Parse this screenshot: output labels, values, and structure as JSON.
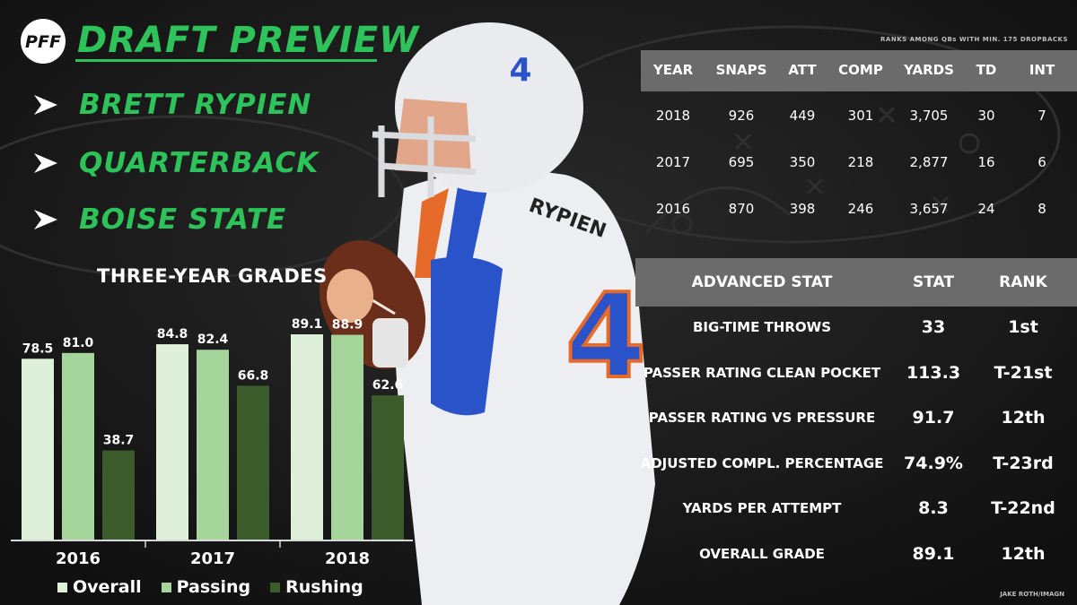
{
  "header": {
    "brand": "PFF",
    "title": "DRAFT PREVIEW",
    "player_name": "BRETT RYPIEN",
    "position": "QUARTERBACK",
    "school": "BOISE STATE"
  },
  "colors": {
    "accent_green": "#2ec35a",
    "overall": "#dff0da",
    "passing": "#a6d59b",
    "rushing": "#3c5c2b",
    "table_header": "#6b6b6b"
  },
  "chart_data": {
    "type": "bar",
    "title": "THREE-YEAR GRADES",
    "categories": [
      "2016",
      "2017",
      "2018"
    ],
    "series": [
      {
        "name": "Overall",
        "values": [
          78.5,
          84.8,
          89.1
        ]
      },
      {
        "name": "Passing",
        "values": [
          81.0,
          82.4,
          88.9
        ]
      },
      {
        "name": "Rushing",
        "values": [
          38.7,
          66.8,
          62.6
        ]
      }
    ],
    "data_labels": [
      [
        "78.5",
        "84.8",
        "89.1"
      ],
      [
        "81.0",
        "82.4",
        "88.9"
      ],
      [
        "38.7",
        "66.8",
        "62.6"
      ]
    ],
    "ylim": [
      0,
      100
    ],
    "grid": false,
    "legend_position": "bottom"
  },
  "season_stats": {
    "note": "RANKS AMONG QBs WITH MIN. 175 DROPBACKS",
    "columns": [
      "YEAR",
      "SNAPS",
      "ATT",
      "COMP",
      "YARDS",
      "TD",
      "INT"
    ],
    "rows": [
      [
        "2018",
        "926",
        "449",
        "301",
        "3,705",
        "30",
        "7"
      ],
      [
        "2017",
        "695",
        "350",
        "218",
        "2,877",
        "16",
        "6"
      ],
      [
        "2016",
        "870",
        "398",
        "246",
        "3,657",
        "24",
        "8"
      ]
    ]
  },
  "advanced_stats": {
    "columns": [
      "ADVANCED STAT",
      "STAT",
      "RANK"
    ],
    "rows": [
      [
        "BIG-TIME THROWS",
        "33",
        "1st"
      ],
      [
        "PASSER RATING CLEAN POCKET",
        "113.3",
        "T-21st"
      ],
      [
        "PASSER RATING VS PRESSURE",
        "91.7",
        "12th"
      ],
      [
        "ADJUSTED COMPL. PERCENTAGE",
        "74.9%",
        "T-23rd"
      ],
      [
        "YARDS PER ATTEMPT",
        "8.3",
        "T-22nd"
      ],
      [
        "OVERALL GRADE",
        "89.1",
        "12th"
      ]
    ]
  },
  "credit": "JAKE ROTH/IMAGN",
  "jersey_number": "4",
  "nameplate": "RYPIEN"
}
